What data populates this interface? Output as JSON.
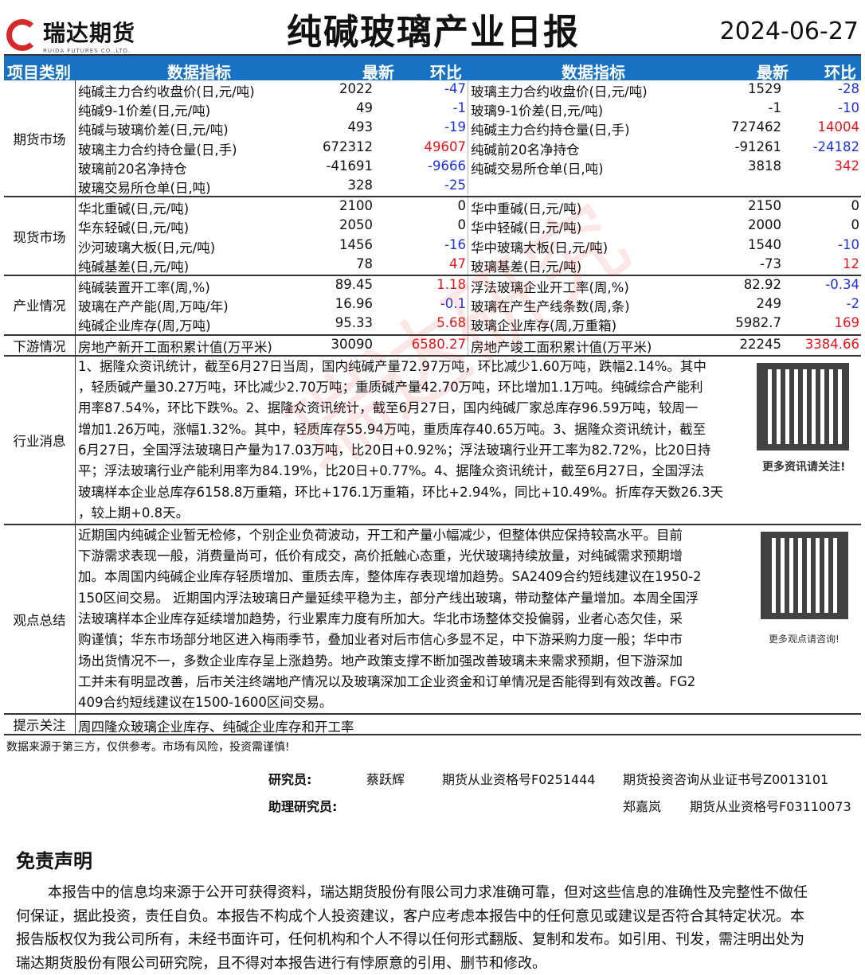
{
  "header": {
    "logo_text": "瑞达期货",
    "logo_sub": "RUIDA FUTURES CO.,LTD.",
    "title": "纯碱玻璃产业日报",
    "date": "2024-06-27"
  },
  "columns": {
    "category": "项目类别",
    "indicator": "数据指标",
    "latest": "最新",
    "change": "环比"
  },
  "sections": [
    {
      "name": "期货市场",
      "rows": [
        [
          "纯碱主力合约收盘价(日,元/吨)",
          "2022",
          "-47",
          "玻璃主力合约收盘价(日,元/吨)",
          "1529",
          "-28"
        ],
        [
          "纯碱9-1价差(日,元/吨)",
          "49",
          "-1",
          "玻璃9-1价差(日,元/吨)",
          "-1",
          "-10"
        ],
        [
          "纯碱与玻璃价差(日,元/吨)",
          "493",
          "-19",
          "纯碱主力合约持仓量(日,手)",
          "727462",
          "14004"
        ],
        [
          "玻璃主力合约持仓量(日,手)",
          "672312",
          "49607",
          "纯碱前20名净持仓",
          "-91261",
          "-24182"
        ],
        [
          "玻璃前20名净持仓",
          "-41691",
          "-9666",
          "纯碱交易所仓单(日,吨)",
          "3818",
          "342"
        ],
        [
          "玻璃交易所仓单(日,吨)",
          "328",
          "-25",
          "",
          "",
          ""
        ]
      ]
    },
    {
      "name": "现货市场",
      "rows": [
        [
          "华北重碱(日,元/吨)",
          "2100",
          "0",
          "华中重碱(日,元/吨)",
          "2150",
          "0"
        ],
        [
          "华东轻碱(日,元/吨)",
          "2050",
          "0",
          "华中轻碱(日,元/吨)",
          "2000",
          "0"
        ],
        [
          "沙河玻璃大板(日,元/吨)",
          "1456",
          "-16",
          "华中玻璃大板(日,元/吨)",
          "1540",
          "-10"
        ],
        [
          "纯碱基差(日,元/吨)",
          "78",
          "47",
          "玻璃基差(日,元/吨)",
          "-73",
          "12"
        ]
      ]
    },
    {
      "name": "产业情况",
      "rows": [
        [
          "纯碱装置开工率(周,%)",
          "89.45",
          "1.18",
          "浮法玻璃企业开工率(周,%)",
          "82.92",
          "-0.34"
        ],
        [
          "玻璃在产产能(周,万吨/年)",
          "16.96",
          "-0.1",
          "玻璃在产生产线条数(周,条)",
          "249",
          "-2"
        ],
        [
          "纯碱企业库存(周,万吨)",
          "95.33",
          "5.68",
          "玻璃企业库存(周,万重箱)",
          "5982.7",
          "169"
        ]
      ]
    },
    {
      "name": "下游情况",
      "rows": [
        [
          "房地产新开工面积累计值(万平米)",
          "30090",
          "6580.27",
          "房地产竣工面积累计值(万平米)",
          "22245",
          "3384.66"
        ]
      ]
    }
  ],
  "news": {
    "label": "行业消息",
    "qr_caption": "更多资讯请关注!",
    "lines": [
      "1、据隆众资讯统计，截至6月27日当周，国内纯碱产量72.97万吨，环比减少1.60万吨，跌幅2.14%。其中",
      "，轻质碱产量30.27万吨，环比减少2.70万吨；重质碱产量42.70万吨，环比增加1.1万吨。纯碱综合产能利",
      "用率87.54%，环比下跌%。2、据隆众资讯统计，截至6月27日，国内纯碱厂家总库存96.59万吨，较周一",
      "增加1.26万吨，涨幅1.32%。其中，轻质库存55.94万吨，重质库存40.65万吨。3、据隆众资讯统计，截至",
      "6月27日，全国浮法玻璃日产量为17.03万吨，比20日+0.92%；浮法玻璃行业开工率为82.72%，比20日持",
      "平；浮法玻璃行业产能利用率为84.19%，比20日+0.77%。4、据隆众资讯统计，截至6月27日，全国浮法",
      "玻璃样本企业总库存6158.8万重箱，环比+176.1万重箱，环比+2.94%，同比+10.49%。折库存天数26.3天",
      "，较上期+0.8天。"
    ]
  },
  "views": {
    "label": "观点总结",
    "qr_caption": "更多观点请咨询!",
    "lines": [
      "近期国内纯碱企业暂无检修，个别企业负荷波动，开工和产量小幅减少，但整体供应保持较高水平。目前",
      "下游需求表现一般，消费量尚可，低价有成交，高价抵触心态重，光伏玻璃持续放量，对纯碱需求预期增",
      "加。本周国内纯碱企业库存轻质增加、重质去库，整体库存表现增加趋势。SA2409合约短线建议在1950-2",
      "150区间交易。 近期国内浮法玻璃日产量延续平稳为主，部分产线出玻璃，带动整体产量增加。本周全国浮",
      "法玻璃样本企业库存延续增加趋势，行业累库力度有所加大。华北市场整体交投偏弱，业者心态欠佳，采",
      "购谨慎；华东市场部分地区进入梅雨季节，叠加业者对后市信心多显不足，中下游采购力度一般；华中市",
      "场出货情况不一，多数企业库存呈上涨趋势。地产政策支撑不断加强改善玻璃未来需求预期，但下游深加",
      "工并未有明显改善，后市关注终端地产情况以及玻璃深加工企业资金和订单情况是否能得到有效改善。FG2",
      "409合约短线建议在1500-1600区间交易。"
    ]
  },
  "tips": {
    "label": "提示关注",
    "text": "周四隆众玻璃企业库存、纯碱企业库存和开工率"
  },
  "source_note": "数据来源于第三方，仅供参考。市场有风险，投资需谨慎!",
  "researchers": {
    "label": "研究员:",
    "name": "蔡跃辉",
    "cert1": "期货从业资格号F0251444",
    "cert2": "期货投资咨询从业证书号Z0013101",
    "assistant_label": "助理研究员:",
    "assistant_name": "郑嘉岚",
    "assistant_cert": "期货从业资格号F03110073"
  },
  "disclaimer": {
    "title": "免责声明",
    "lines": [
      "本报告中的信息均来源于公开可获得资料，瑞达期货股份有限公司力求准确可靠，但对这些信息的准确性及完整性不做任",
      "何保证，据此投资，责任自负。本报告不构成个人投资建议，客户应考虑本报告中的任何意见或建议是否符合其特定状况。本",
      "报告版权仅为我公司所有，未经书面许可，任何机构和个人不得以任何形式翻版、复制和发布。如引用、刊发，需注明出处为",
      "瑞达期货股份有限公司研究院，且不得对本报告进行有悖原意的引用、删节和修改。"
    ]
  },
  "colors": {
    "header_bg": "#1872c4",
    "negative": "#1e30e6",
    "positive": "#e8141c",
    "logo": "#d62a2a"
  }
}
